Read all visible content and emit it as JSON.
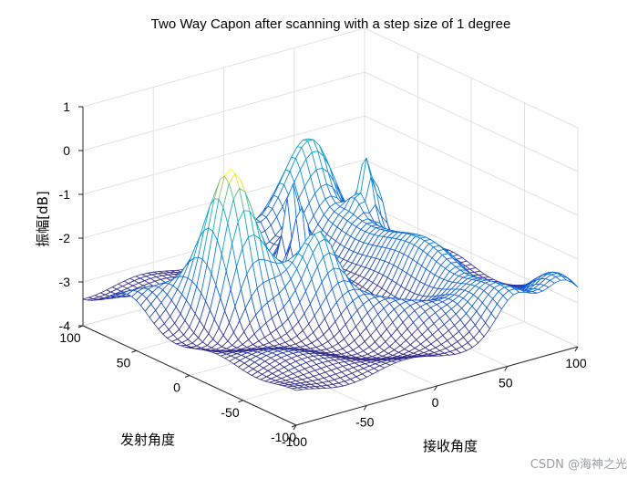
{
  "chart_data": {
    "type": "surface",
    "title": "Two Way Capon after scanning with a step size of 1 degree",
    "xlabel": "接收角度",
    "ylabel": "发射角度",
    "zlabel": "振幅[dB]",
    "xlim": [
      -100,
      100
    ],
    "ylim": [
      -100,
      100
    ],
    "zlim": [
      -4,
      1
    ],
    "x_ticks": [
      "-100",
      "-50",
      "0",
      "50",
      "100"
    ],
    "y_ticks": [
      "-100",
      "-50",
      "0",
      "50",
      "100"
    ],
    "z_ticks": [
      "-4",
      "-3",
      "-2",
      "-1",
      "0",
      "1"
    ],
    "grid": true,
    "colormap": "parula",
    "floor_level": -3.3,
    "peaks": [
      {
        "x": 50,
        "y": 90,
        "z": -1.7
      },
      {
        "x": -60,
        "y": 15,
        "z": -0.1
      },
      {
        "x": -15,
        "y": -10,
        "z": -2.2
      },
      {
        "x": 90,
        "y": -90,
        "z": -2.2
      },
      {
        "x": 70,
        "y": 55,
        "z": -0.9
      },
      {
        "x": 20,
        "y": 60,
        "z": -1.0
      }
    ]
  },
  "watermark": "CSDN @海神之光"
}
